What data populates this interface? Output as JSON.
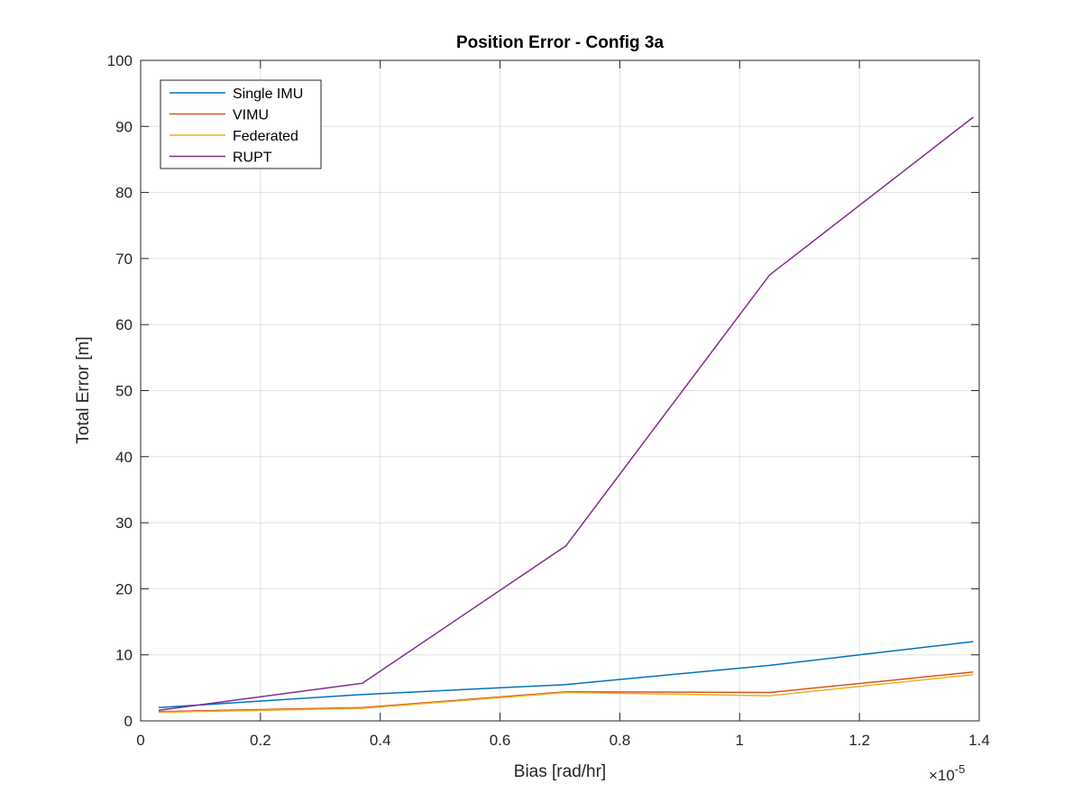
{
  "chart_data": {
    "type": "line",
    "title": "Position Error - Config 3a",
    "xlabel": "Bias [rad/hr]",
    "ylabel": "Total Error [m]",
    "x_exponent_label": "×10",
    "x_exponent_power": "-5",
    "xlim": [
      0,
      1.4
    ],
    "ylim": [
      0,
      100
    ],
    "x_ticks": [
      0,
      0.2,
      0.4,
      0.6,
      0.8,
      1,
      1.2,
      1.4
    ],
    "x_tick_labels": [
      "0",
      "0.2",
      "0.4",
      "0.6",
      "0.8",
      "1",
      "1.2",
      "1.4"
    ],
    "y_ticks": [
      0,
      10,
      20,
      30,
      40,
      50,
      60,
      70,
      80,
      90,
      100
    ],
    "y_tick_labels": [
      "0",
      "10",
      "20",
      "30",
      "40",
      "50",
      "60",
      "70",
      "80",
      "90",
      "100"
    ],
    "grid": true,
    "legend_position": "top-left",
    "x": [
      0.03,
      0.37,
      0.71,
      1.05,
      1.39
    ],
    "series": [
      {
        "name": "Single IMU",
        "color": "#0072BD",
        "values": [
          2.0,
          4.0,
          5.5,
          8.4,
          12.0
        ]
      },
      {
        "name": "VIMU",
        "color": "#D95319",
        "values": [
          1.4,
          2.0,
          4.4,
          4.3,
          7.4
        ]
      },
      {
        "name": "Federated",
        "color": "#EDB120",
        "values": [
          1.3,
          1.9,
          4.3,
          3.8,
          7.0
        ]
      },
      {
        "name": "RUPT",
        "color": "#7E2F8E",
        "values": [
          1.6,
          5.7,
          26.5,
          67.5,
          91.4
        ]
      }
    ]
  }
}
